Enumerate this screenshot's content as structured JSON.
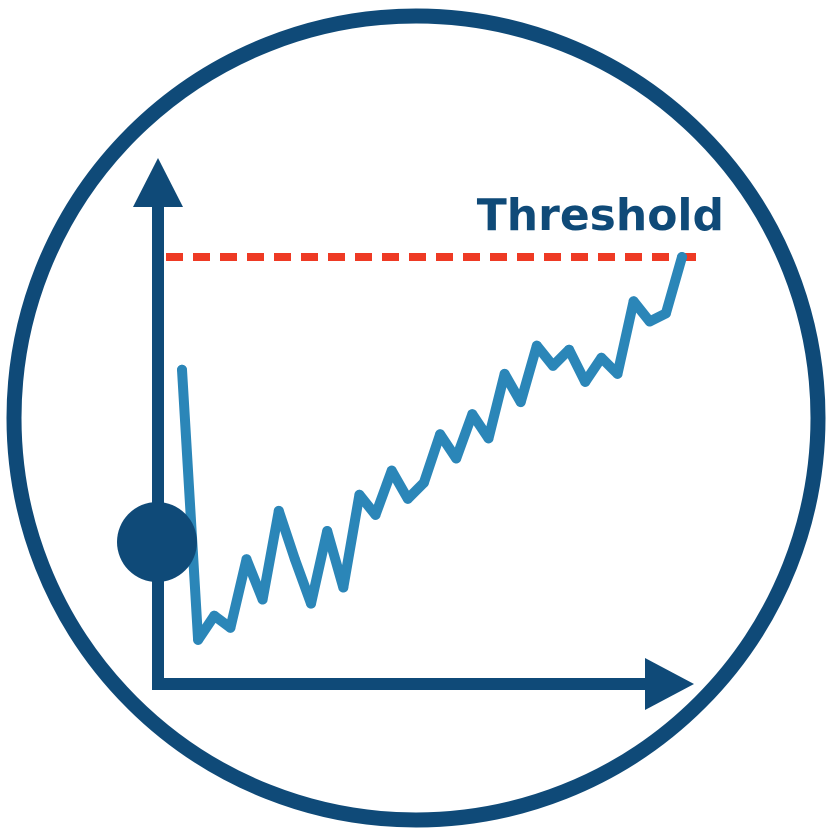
{
  "colors": {
    "frame": "#0f4a78",
    "axis": "#0f4a78",
    "line": "#2b86b8",
    "threshold": "#ee3a24",
    "start_marker": "#0f4a78",
    "label": "#0f4a78"
  },
  "threshold": {
    "label": "Threshold",
    "style": "dashed"
  },
  "chart_data": {
    "type": "line",
    "axes": {
      "x_arrow": true,
      "y_arrow": true,
      "tick_labels": false
    },
    "grid": false,
    "series": [
      {
        "values": [
          0.72,
          0.05,
          0.11,
          0.08,
          0.25,
          0.15,
          0.37,
          0.25,
          0.14,
          0.32,
          0.18,
          0.41,
          0.36,
          0.47,
          0.4,
          0.44,
          0.56,
          0.5,
          0.61,
          0.55,
          0.71,
          0.64,
          0.78,
          0.73,
          0.77,
          0.69,
          0.75,
          0.71,
          0.89,
          0.84,
          0.86,
          1.0
        ]
      }
    ],
    "threshold_value": 1.0,
    "start_marker": true
  }
}
